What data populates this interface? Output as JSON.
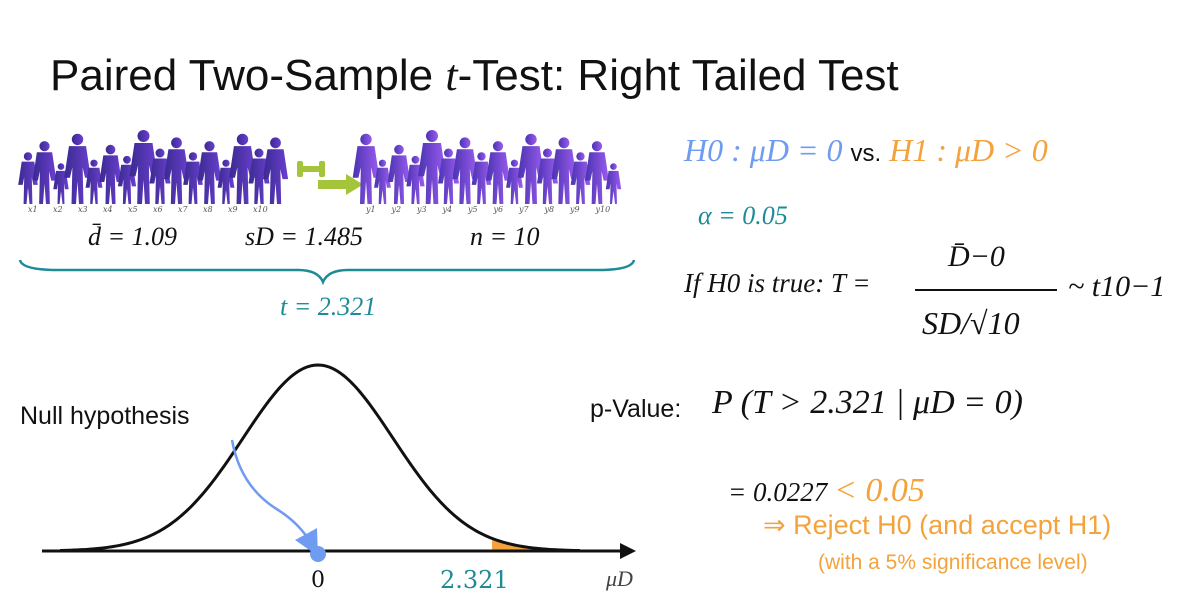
{
  "title": "Paired Two-Sample t-Test: Right Tailed Test",
  "title_parts": {
    "before": "Paired Two-Sample ",
    "t": "t",
    "after": "-Test: Right Tailed Test"
  },
  "samples": {
    "x_labels": [
      "x1",
      "x2",
      "x3",
      "x4",
      "x5",
      "x6",
      "x7",
      "x8",
      "x9",
      "x10"
    ],
    "y_labels": [
      "y1",
      "y2",
      "y3",
      "y4",
      "y5",
      "y6",
      "y7",
      "y8",
      "y9",
      "y10"
    ]
  },
  "stats": {
    "dbar": "d̄ = 1.09",
    "sd": "sD = 1.485",
    "n": "n = 10",
    "t": "t = 2.321"
  },
  "hypotheses": {
    "h0": "H0 : μD = 0",
    "vs": "vs.",
    "h1": "H1 : μD > 0"
  },
  "alpha": "α = 0.05",
  "test_statistic": {
    "prefix": "If H0 is true: T =",
    "numerator": "D̄−0",
    "denominator": "SD/√10",
    "distribution": "~ t10−1"
  },
  "p_value": {
    "label": "p-Value:",
    "expr": "P (T > 2.321 | μD = 0)",
    "t_value": "2.321",
    "equals": "= 0.0227",
    "comparison": "< 0.05"
  },
  "conclusion": {
    "reject": "⇒ Reject H0 (and accept H1)",
    "significance": "(with a 5% significance level)"
  },
  "plot": {
    "null_label": "Null hypothesis",
    "tick_zero": "0",
    "tick_t": "2.321",
    "axis_label": "μD",
    "t_value": 2.321,
    "null_mean": 0
  },
  "colors": {
    "blue": "#6f9bf0",
    "orange": "#f4a23c",
    "teal": "#1e8b96",
    "silhouette_left": "#4b2fa0",
    "silhouette_right": "#8a5ce8",
    "arrow_green": "#a4c43a"
  }
}
